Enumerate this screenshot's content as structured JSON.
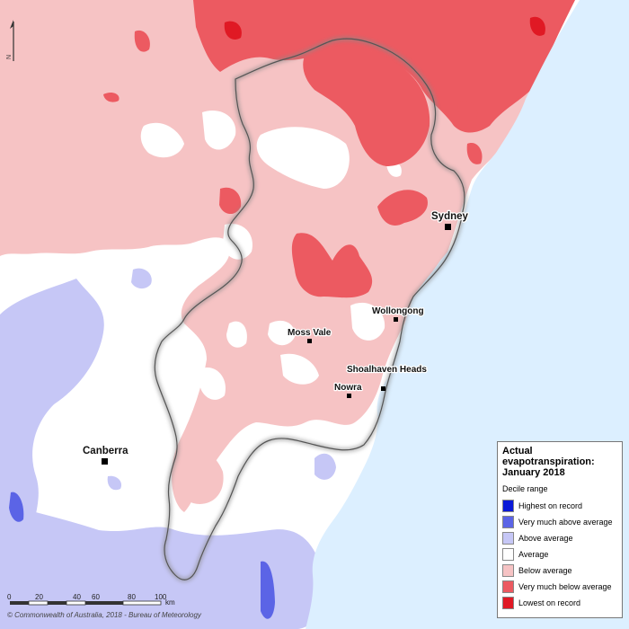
{
  "legend": {
    "title": "Actual\nevapotranspiration:\nJanuary 2018",
    "subtitle": "Decile range",
    "items": [
      {
        "label": "Highest on record",
        "color": "#0b1ad8"
      },
      {
        "label": "Very much above average",
        "color": "#5b64e6"
      },
      {
        "label": "Above average",
        "color": "#c6c7f6"
      },
      {
        "label": "Average",
        "color": "#ffffff"
      },
      {
        "label": "Below average",
        "color": "#f6c3c4"
      },
      {
        "label": "Very much below average",
        "color": "#ec5a61"
      },
      {
        "label": "Lowest on record",
        "color": "#e01924"
      }
    ]
  },
  "places": [
    {
      "name": "Sydney"
    },
    {
      "name": "Wollongong"
    },
    {
      "name": "Moss Vale"
    },
    {
      "name": "Shoalhaven Heads"
    },
    {
      "name": "Nowra"
    },
    {
      "name": "Canberra"
    }
  ],
  "scale_bar": {
    "ticks": [
      "0",
      "20",
      "40",
      "60",
      "80",
      "100"
    ],
    "unit": "km"
  },
  "north_label": "N",
  "copyright": "© Commonwealth of Australia, 2018 - Bureau of Meteorology",
  "colors": {
    "ocean": "#dcefff",
    "land_average": "#ffffff",
    "below_average": "#f6c3c4",
    "very_much_below": "#ec5a61",
    "above_average": "#c6c7f6",
    "very_much_above": "#5b64e6"
  }
}
